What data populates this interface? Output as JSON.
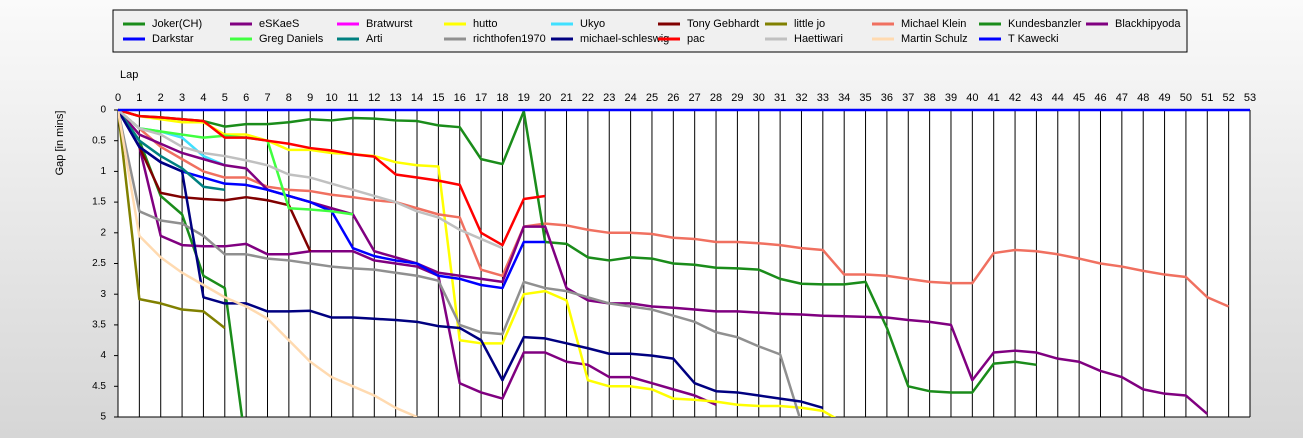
{
  "chart_data": {
    "type": "line",
    "x_label": "Lap",
    "y_label": "Gap [in mins]",
    "xlim": [
      0,
      53
    ],
    "ylim": [
      0,
      5
    ],
    "y_inverted": true,
    "grid": "x",
    "xticks": [
      0,
      1,
      2,
      3,
      4,
      5,
      6,
      7,
      8,
      9,
      10,
      11,
      12,
      13,
      14,
      15,
      16,
      17,
      18,
      19,
      20,
      21,
      22,
      23,
      24,
      25,
      26,
      27,
      28,
      29,
      30,
      31,
      32,
      33,
      34,
      35,
      36,
      37,
      38,
      39,
      40,
      41,
      42,
      43,
      44,
      45,
      46,
      47,
      48,
      49,
      50,
      51,
      52,
      53
    ],
    "yticks": [
      0,
      0.5,
      1,
      1.5,
      2,
      2.5,
      3,
      3.5,
      4,
      4.5,
      5
    ],
    "x": [
      0,
      1,
      2,
      3,
      4,
      5,
      6,
      7,
      8,
      9,
      10,
      11,
      12,
      13,
      14,
      15,
      16,
      17,
      18,
      19,
      20,
      21,
      22,
      23,
      24,
      25,
      26,
      27,
      28,
      29,
      30,
      31,
      32,
      33,
      34,
      35,
      36,
      37,
      38,
      39,
      40,
      41,
      42,
      43,
      44,
      45,
      46,
      47,
      48,
      49,
      50,
      51,
      52,
      53
    ],
    "series": [
      {
        "name": "Joker(CH)",
        "color": "#1a8c1a",
        "values": [
          0,
          0.5,
          1.4,
          1.7,
          2.7,
          2.9,
          5.5,
          null,
          null,
          null,
          null,
          null,
          null,
          null,
          null,
          null,
          null,
          null,
          null,
          null,
          null,
          null,
          null,
          null,
          null,
          null,
          null,
          null,
          null,
          null,
          null,
          null,
          null,
          null,
          null,
          null,
          null,
          null,
          null,
          null,
          null,
          null,
          null,
          null,
          null,
          null,
          null,
          null,
          null,
          null,
          null,
          null,
          null,
          null
        ]
      },
      {
        "name": "eSKaeS",
        "color": "#800080",
        "values": [
          0,
          0.6,
          2.05,
          2.2,
          2.22,
          2.22,
          2.18,
          2.35,
          2.35,
          2.3,
          2.3,
          2.3,
          2.45,
          2.5,
          2.55,
          2.7,
          4.45,
          4.6,
          4.7,
          3.95,
          3.95,
          4.1,
          4.15,
          4.35,
          4.35,
          4.45,
          4.55,
          4.65,
          4.8,
          null,
          null,
          null,
          null,
          null,
          null,
          null,
          null,
          null,
          null,
          null,
          null,
          null,
          null,
          null,
          null,
          null,
          null,
          null,
          null,
          null,
          null,
          null,
          null,
          null
        ]
      },
      {
        "name": "Bratwurst",
        "color": "#ff00ff",
        "values": [
          0,
          0.3,
          null,
          null,
          null,
          null,
          null,
          null,
          null,
          null,
          null,
          null,
          null,
          null,
          null,
          null,
          null,
          null,
          null,
          null,
          null,
          null,
          null,
          null,
          null,
          null,
          null,
          null,
          null,
          null,
          null,
          null,
          null,
          null,
          null,
          null,
          null,
          null,
          null,
          null,
          null,
          null,
          null,
          null,
          null,
          null,
          null,
          null,
          null,
          null,
          null,
          null,
          null,
          null
        ]
      },
      {
        "name": "hutto",
        "color": "#ffff00",
        "values": [
          0,
          0.1,
          0.15,
          0.2,
          0.2,
          0.4,
          0.4,
          0.5,
          0.65,
          0.65,
          0.7,
          0.72,
          0.75,
          0.85,
          0.9,
          0.92,
          3.75,
          3.8,
          3.8,
          3.0,
          2.95,
          3.1,
          4.4,
          4.5,
          4.5,
          4.55,
          4.7,
          4.72,
          4.75,
          4.8,
          4.82,
          4.82,
          4.85,
          4.9,
          5.1,
          null,
          null,
          null,
          null,
          null,
          null,
          null,
          null,
          null,
          null,
          null,
          null,
          null,
          null,
          null,
          null,
          null,
          null,
          null
        ]
      },
      {
        "name": "Ukyo",
        "color": "#40e0ff",
        "values": [
          0,
          0.3,
          0.35,
          0.45,
          0.75,
          0.9,
          null,
          null,
          null,
          null,
          null,
          null,
          null,
          null,
          null,
          null,
          null,
          null,
          null,
          null,
          null,
          null,
          null,
          null,
          null,
          null,
          null,
          null,
          null,
          null,
          null,
          null,
          null,
          null,
          null,
          null,
          null,
          null,
          null,
          null,
          null,
          null,
          null,
          null,
          null,
          null,
          null,
          null,
          null,
          null,
          null,
          null,
          null,
          null
        ]
      },
      {
        "name": "Tony Gebhardt",
        "color": "#800000",
        "values": [
          0,
          0.6,
          1.35,
          1.42,
          1.45,
          1.47,
          1.42,
          1.47,
          1.55,
          2.3,
          null,
          null,
          null,
          null,
          null,
          null,
          null,
          null,
          null,
          null,
          null,
          null,
          null,
          null,
          null,
          null,
          null,
          null,
          null,
          null,
          null,
          null,
          null,
          null,
          null,
          null,
          null,
          null,
          null,
          null,
          null,
          null,
          null,
          null,
          null,
          null,
          null,
          null,
          null,
          null,
          null,
          null,
          null,
          null
        ]
      },
      {
        "name": "little jo",
        "color": "#808000",
        "values": [
          0,
          3.08,
          3.15,
          3.25,
          3.28,
          3.55,
          null,
          null,
          null,
          null,
          null,
          null,
          null,
          null,
          null,
          null,
          null,
          null,
          null,
          null,
          null,
          null,
          null,
          null,
          null,
          null,
          null,
          null,
          null,
          null,
          null,
          null,
          null,
          null,
          null,
          null,
          null,
          null,
          null,
          null,
          null,
          null,
          null,
          null,
          null,
          null,
          null,
          null,
          null,
          null,
          null,
          null,
          null,
          null
        ]
      },
      {
        "name": "Michael Klein",
        "color": "#f07060",
        "values": [
          0,
          0.3,
          0.6,
          0.8,
          1.0,
          1.1,
          1.1,
          1.25,
          1.3,
          1.32,
          1.38,
          1.42,
          1.47,
          1.5,
          1.6,
          1.7,
          1.75,
          2.6,
          2.7,
          1.9,
          1.85,
          1.88,
          1.95,
          2.0,
          2.0,
          2.02,
          2.08,
          2.1,
          2.15,
          2.15,
          2.17,
          2.2,
          2.25,
          2.28,
          2.68,
          2.68,
          2.7,
          2.75,
          2.8,
          2.82,
          2.82,
          2.33,
          2.28,
          2.3,
          2.35,
          2.42,
          2.5,
          2.55,
          2.62,
          2.68,
          2.72,
          3.05,
          3.2,
          null
        ]
      },
      {
        "name": "Kundesbanzler",
        "color": "#1a8c1a",
        "values": [
          0,
          0.1,
          0.12,
          0.15,
          0.18,
          0.27,
          0.23,
          0.23,
          0.2,
          0.15,
          0.17,
          0.13,
          0.14,
          0.17,
          0.18,
          0.25,
          0.28,
          0.8,
          0.88,
          0.02,
          2.15,
          2.18,
          2.4,
          2.45,
          2.4,
          2.42,
          2.5,
          2.52,
          2.57,
          2.58,
          2.6,
          2.75,
          2.83,
          2.84,
          2.84,
          2.8,
          3.55,
          4.5,
          4.58,
          4.6,
          4.6,
          4.13,
          4.1,
          4.15,
          null,
          null,
          null,
          null,
          null,
          null,
          null,
          null,
          null,
          null
        ]
      },
      {
        "name": "Blackhipyoda",
        "color": "#800080",
        "values": [
          0,
          0.4,
          0.55,
          0.7,
          0.8,
          0.9,
          0.95,
          1.3,
          1.4,
          1.5,
          1.6,
          1.7,
          2.3,
          2.4,
          2.5,
          2.65,
          2.7,
          2.75,
          2.8,
          1.9,
          1.9,
          2.9,
          3.1,
          3.15,
          3.15,
          3.2,
          3.22,
          3.25,
          3.28,
          3.28,
          3.3,
          3.32,
          3.33,
          3.35,
          3.36,
          3.37,
          3.38,
          3.42,
          3.45,
          3.5,
          4.4,
          3.95,
          3.92,
          3.95,
          4.05,
          4.1,
          4.25,
          4.35,
          4.55,
          4.62,
          4.65,
          4.95,
          null,
          null
        ]
      },
      {
        "name": "Darkstar",
        "color": "#0000ff",
        "values": [
          0,
          0.6,
          0.85,
          1.0,
          1.1,
          1.2,
          1.22,
          1.3,
          1.4,
          1.5,
          1.65,
          2.25,
          2.38,
          2.45,
          2.5,
          2.7,
          2.75,
          2.85,
          2.9,
          2.15,
          2.15,
          null,
          null,
          null,
          null,
          null,
          null,
          null,
          null,
          null,
          null,
          null,
          null,
          null,
          null,
          null,
          null,
          null,
          null,
          null,
          null,
          null,
          null,
          null,
          null,
          null,
          null,
          null,
          null,
          null,
          null,
          null,
          null,
          null
        ]
      },
      {
        "name": "Greg Daniels",
        "color": "#40ff40",
        "values": [
          0,
          0.3,
          0.35,
          0.4,
          0.45,
          0.42,
          0.45,
          0.5,
          1.6,
          1.62,
          1.65,
          1.7,
          null,
          null,
          null,
          null,
          null,
          null,
          null,
          null,
          null,
          null,
          null,
          null,
          null,
          null,
          null,
          null,
          null,
          null,
          null,
          null,
          null,
          null,
          null,
          null,
          null,
          null,
          null,
          null,
          null,
          null,
          null,
          null,
          null,
          null,
          null,
          null,
          null,
          null,
          null,
          null,
          null,
          null
        ]
      },
      {
        "name": "Arti",
        "color": "#008080",
        "values": [
          0,
          0.5,
          0.75,
          0.95,
          1.25,
          1.3,
          null,
          null,
          null,
          null,
          null,
          null,
          null,
          null,
          null,
          null,
          null,
          null,
          null,
          null,
          null,
          null,
          null,
          null,
          null,
          null,
          null,
          null,
          null,
          null,
          null,
          null,
          null,
          null,
          null,
          null,
          null,
          null,
          null,
          null,
          null,
          null,
          null,
          null,
          null,
          null,
          null,
          null,
          null,
          null,
          null,
          null,
          null,
          null
        ]
      },
      {
        "name": "richthofen1970",
        "color": "#909090",
        "values": [
          0,
          1.65,
          1.8,
          1.85,
          2.05,
          2.35,
          2.35,
          2.42,
          2.45,
          2.5,
          2.55,
          2.58,
          2.6,
          2.65,
          2.7,
          2.78,
          3.5,
          3.62,
          3.65,
          2.8,
          2.9,
          2.95,
          3.05,
          3.15,
          3.2,
          3.25,
          3.35,
          3.45,
          3.62,
          3.7,
          3.85,
          3.98,
          5.1,
          null,
          null,
          null,
          null,
          null,
          null,
          null,
          null,
          null,
          null,
          null,
          null,
          null,
          null,
          null,
          null,
          null,
          null,
          null,
          null,
          null
        ]
      },
      {
        "name": "michael-schleswig",
        "color": "#000080",
        "values": [
          0,
          0.6,
          0.85,
          1.0,
          3.05,
          3.15,
          3.15,
          3.28,
          3.28,
          3.27,
          3.38,
          3.38,
          3.4,
          3.42,
          3.45,
          3.52,
          3.55,
          3.75,
          4.4,
          3.7,
          3.72,
          3.8,
          3.88,
          3.97,
          3.97,
          4.0,
          4.05,
          4.45,
          4.58,
          4.6,
          4.65,
          4.7,
          4.75,
          4.85,
          null,
          null,
          null,
          null,
          null,
          null,
          null,
          null,
          null,
          null,
          null,
          null,
          null,
          null,
          null,
          null,
          null,
          null,
          null,
          null
        ]
      },
      {
        "name": "pac",
        "color": "#ff0000",
        "values": [
          0,
          0.1,
          0.12,
          0.15,
          0.18,
          0.45,
          0.45,
          0.5,
          0.55,
          0.62,
          0.66,
          0.72,
          0.76,
          1.05,
          1.1,
          1.15,
          1.22,
          2.0,
          2.2,
          1.45,
          1.4,
          null,
          null,
          null,
          null,
          null,
          null,
          null,
          null,
          null,
          null,
          null,
          null,
          null,
          null,
          null,
          null,
          null,
          null,
          null,
          null,
          null,
          null,
          null,
          null,
          null,
          null,
          null,
          null,
          null,
          null,
          null,
          null,
          null
        ]
      },
      {
        "name": "Haettiwari",
        "color": "#c0c0c0",
        "values": [
          0,
          0.3,
          0.4,
          0.6,
          0.7,
          0.75,
          0.82,
          0.9,
          1.05,
          1.1,
          1.2,
          1.3,
          1.4,
          1.5,
          1.65,
          1.75,
          1.95,
          2.1,
          2.25,
          null,
          null,
          null,
          null,
          null,
          null,
          null,
          null,
          null,
          null,
          null,
          null,
          null,
          null,
          null,
          null,
          null,
          null,
          null,
          null,
          null,
          null,
          null,
          null,
          null,
          null,
          null,
          null,
          null,
          null,
          null,
          null,
          null,
          null,
          null
        ]
      },
      {
        "name": "Martin Schulz",
        "color": "#ffdab0",
        "values": [
          0,
          2.05,
          2.4,
          2.65,
          2.85,
          3.05,
          3.2,
          3.4,
          3.75,
          4.1,
          4.35,
          4.5,
          4.65,
          4.85,
          5.0,
          null,
          null,
          null,
          null,
          null,
          null,
          null,
          null,
          null,
          null,
          null,
          null,
          null,
          null,
          null,
          null,
          null,
          null,
          null,
          null,
          null,
          null,
          null,
          null,
          null,
          null,
          null,
          null,
          null,
          null,
          null,
          null,
          null,
          null,
          null,
          null,
          null,
          null,
          null
        ]
      },
      {
        "name": "T Kawecki",
        "color": "#0000ff",
        "values": [
          0,
          0,
          0,
          0,
          0,
          0,
          0,
          0,
          0,
          0,
          0,
          0,
          0,
          0,
          0,
          0,
          0,
          0,
          0,
          0,
          0,
          0,
          0,
          0,
          0,
          0,
          0,
          0,
          0,
          0,
          0,
          0,
          0,
          0,
          0,
          0,
          0,
          0,
          0,
          0,
          0,
          0,
          0,
          0,
          0,
          0,
          0,
          0,
          0,
          0,
          0,
          0,
          0,
          0
        ]
      }
    ]
  }
}
